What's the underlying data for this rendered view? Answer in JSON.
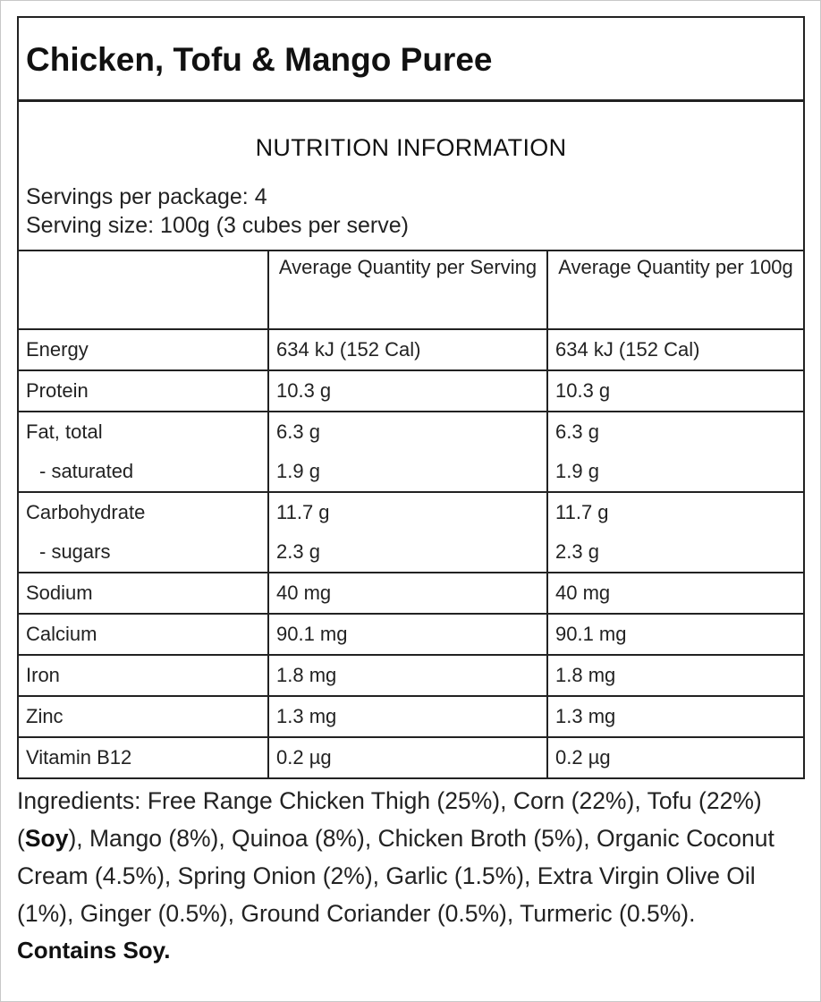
{
  "title": "Chicken, Tofu & Mango Puree",
  "nutrition": {
    "heading": "NUTRITION INFORMATION",
    "servings_per_package": "Servings per package: 4",
    "serving_size": "Serving size: 100g (3 cubes per serve)",
    "col_per_serving": "Average Quantity per Serving",
    "col_per_100g": "Average Quantity per 100g",
    "rows": [
      {
        "name": "Energy",
        "serving": "634 kJ (152 Cal)",
        "per100": "634 kJ (152 Cal)"
      },
      {
        "name": "Protein",
        "serving": "10.3 g",
        "per100": "10.3 g"
      },
      {
        "name": "Fat, total",
        "serving": "6.3 g",
        "per100": "6.3 g",
        "sub_name": "- saturated",
        "sub_serving": "1.9 g",
        "sub_per100": "1.9 g"
      },
      {
        "name": "Carbohydrate",
        "serving": "11.7 g",
        "per100": "11.7 g",
        "sub_name": "- sugars",
        "sub_serving": "2.3 g",
        "sub_per100": "2.3 g"
      },
      {
        "name": "Sodium",
        "serving": "40 mg",
        "per100": "40 mg"
      },
      {
        "name": "Calcium",
        "serving": "90.1 mg",
        "per100": "90.1 mg"
      },
      {
        "name": "Iron",
        "serving": "1.8 mg",
        "per100": "1.8 mg"
      },
      {
        "name": "Zinc",
        "serving": "1.3 mg",
        "per100": "1.3 mg"
      },
      {
        "name": "Vitamin B12",
        "serving": "0.2 µg",
        "per100": "0.2 µg"
      }
    ]
  },
  "ingredients": {
    "part1": "Ingredients: Free Range Chicken Thigh (25%), Corn (22%), Tofu (22%) (",
    "allergen": "Soy",
    "part2": "), Mango (8%), Quinoa (8%), Chicken Broth (5%), Organic Coconut Cream (4.5%), Spring Onion (2%), Garlic (1.5%), Extra Virgin Olive Oil (1%), Ginger (0.5%), Ground Coriander (0.5%), Turmeric (0.5%)."
  },
  "contains": "Contains Soy."
}
